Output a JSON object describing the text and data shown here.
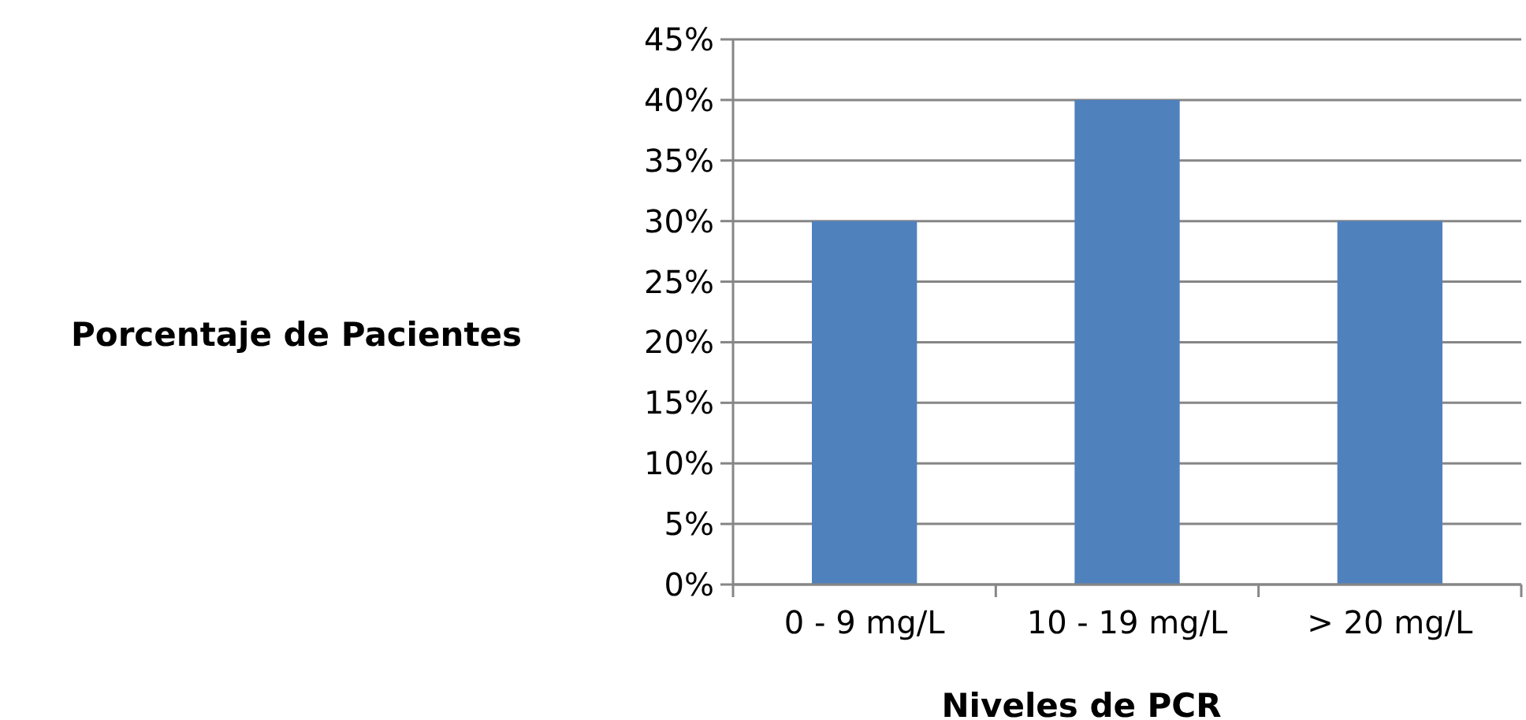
{
  "chart_data": {
    "type": "bar",
    "xlabel": "Niveles de PCR",
    "ylabel": "Porcentaje de Pacientes",
    "categories": [
      "0 - 9 mg/L",
      "10 - 19 mg/L",
      "> 20 mg/L"
    ],
    "values": [
      30,
      40,
      30
    ],
    "color": "#4f81bd",
    "ylim": [
      0,
      45
    ],
    "yticks": [
      {
        "value": 0,
        "label": "0%"
      },
      {
        "value": 5,
        "label": "5%"
      },
      {
        "value": 10,
        "label": "10%"
      },
      {
        "value": 15,
        "label": "15%"
      },
      {
        "value": 20,
        "label": "20%"
      },
      {
        "value": 25,
        "label": "25%"
      },
      {
        "value": 30,
        "label": "30%"
      },
      {
        "value": 35,
        "label": "35%"
      },
      {
        "value": 40,
        "label": "40%"
      },
      {
        "value": 45,
        "label": "45%"
      }
    ],
    "grid": "y"
  }
}
